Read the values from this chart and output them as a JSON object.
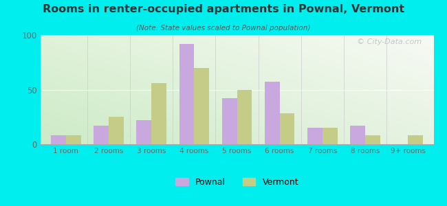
{
  "title": "Rooms in renter-occupied apartments in Pownal, Vermont",
  "subtitle": "(Note: State values scaled to Pownal population)",
  "categories": [
    "1 room",
    "2 rooms",
    "3 rooms",
    "4 rooms",
    "5 rooms",
    "6 rooms",
    "7 rooms",
    "8 rooms",
    "9+ rooms"
  ],
  "pownal_values": [
    8,
    17,
    22,
    92,
    42,
    57,
    15,
    17,
    0
  ],
  "vermont_values": [
    8,
    25,
    56,
    70,
    50,
    28,
    15,
    8,
    8
  ],
  "pownal_color": "#c9a8e0",
  "vermont_color": "#c5cc88",
  "background_color": "#00EEEE",
  "ylim": [
    0,
    100
  ],
  "yticks": [
    0,
    50,
    100
  ],
  "bar_width": 0.35,
  "legend_labels": [
    "Pownal",
    "Vermont"
  ],
  "watermark": "© City-Data.com",
  "title_color": "#333333",
  "subtitle_color": "#555555",
  "tick_color": "#666666"
}
